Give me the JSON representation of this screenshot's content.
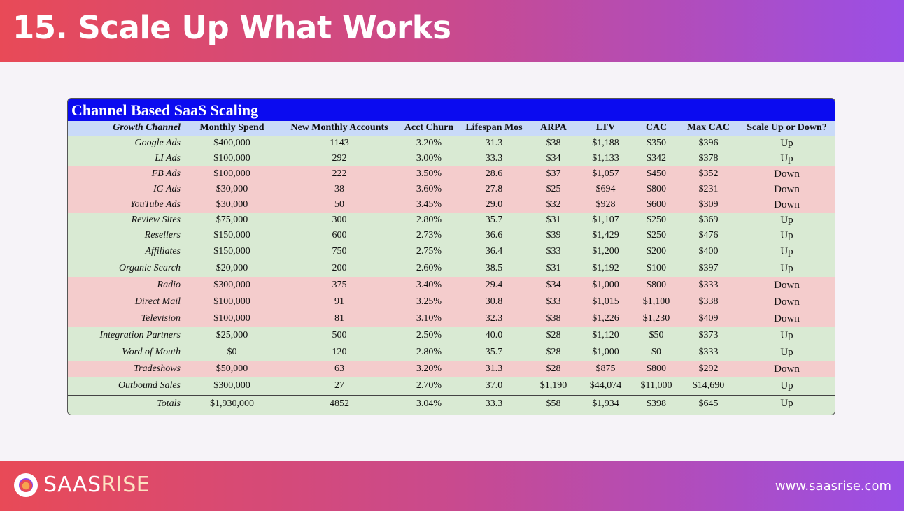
{
  "header": {
    "title": "15. Scale Up What Works"
  },
  "table": {
    "title": "Channel Based SaaS Scaling",
    "columns": [
      "Growth Channel",
      "Monthly Spend",
      "New Monthly Accounts",
      "Acct Churn",
      "Lifespan Mos",
      "ARPA",
      "LTV",
      "CAC",
      "Max CAC",
      "Scale Up or Down?"
    ],
    "rows": [
      {
        "status": "up",
        "cells": [
          "Google Ads",
          "$400,000",
          "1143",
          "3.20%",
          "31.3",
          "$38",
          "$1,188",
          "$350",
          "$396",
          "Up"
        ]
      },
      {
        "status": "up",
        "cells": [
          "LI Ads",
          "$100,000",
          "292",
          "3.00%",
          "33.3",
          "$34",
          "$1,133",
          "$342",
          "$378",
          "Up"
        ]
      },
      {
        "status": "down",
        "cells": [
          "FB Ads",
          "$100,000",
          "222",
          "3.50%",
          "28.6",
          "$37",
          "$1,057",
          "$450",
          "$352",
          "Down"
        ]
      },
      {
        "status": "down",
        "cells": [
          "IG Ads",
          "$30,000",
          "38",
          "3.60%",
          "27.8",
          "$25",
          "$694",
          "$800",
          "$231",
          "Down"
        ]
      },
      {
        "status": "down",
        "cells": [
          "YouTube Ads",
          "$30,000",
          "50",
          "3.45%",
          "29.0",
          "$32",
          "$928",
          "$600",
          "$309",
          "Down"
        ]
      },
      {
        "status": "up",
        "cells": [
          "Review Sites",
          "$75,000",
          "300",
          "2.80%",
          "35.7",
          "$31",
          "$1,107",
          "$250",
          "$369",
          "Up"
        ]
      },
      {
        "status": "up",
        "cells": [
          "Resellers",
          "$150,000",
          "600",
          "2.73%",
          "36.6",
          "$39",
          "$1,429",
          "$250",
          "$476",
          "Up"
        ]
      },
      {
        "status": "up",
        "cells": [
          "Affiliates",
          "$150,000",
          "750",
          "2.75%",
          "36.4",
          "$33",
          "$1,200",
          "$200",
          "$400",
          "Up"
        ]
      },
      {
        "status": "up",
        "cells": [
          "Organic Search",
          "$20,000",
          "200",
          "2.60%",
          "38.5",
          "$31",
          "$1,192",
          "$100",
          "$397",
          "Up"
        ]
      },
      {
        "status": "down",
        "cells": [
          "Radio",
          "$300,000",
          "375",
          "3.40%",
          "29.4",
          "$34",
          "$1,000",
          "$800",
          "$333",
          "Down"
        ]
      },
      {
        "status": "down",
        "cells": [
          "Direct Mail",
          "$100,000",
          "91",
          "3.25%",
          "30.8",
          "$33",
          "$1,015",
          "$1,100",
          "$338",
          "Down"
        ]
      },
      {
        "status": "down",
        "cells": [
          "Television",
          "$100,000",
          "81",
          "3.10%",
          "32.3",
          "$38",
          "$1,226",
          "$1,230",
          "$409",
          "Down"
        ]
      },
      {
        "status": "up",
        "cells": [
          "Integration Partners",
          "$25,000",
          "500",
          "2.50%",
          "40.0",
          "$28",
          "$1,120",
          "$50",
          "$373",
          "Up"
        ]
      },
      {
        "status": "up",
        "cells": [
          "Word of Mouth",
          "$0",
          "120",
          "2.80%",
          "35.7",
          "$28",
          "$1,000",
          "$0",
          "$333",
          "Up"
        ]
      },
      {
        "status": "down",
        "cells": [
          "Tradeshows",
          "$50,000",
          "63",
          "3.20%",
          "31.3",
          "$28",
          "$875",
          "$800",
          "$292",
          "Down"
        ]
      },
      {
        "status": "up",
        "cells": [
          "Outbound Sales",
          "$300,000",
          "27",
          "2.70%",
          "37.0",
          "$1,190",
          "$44,074",
          "$11,000",
          "$14,690",
          "Up"
        ]
      }
    ],
    "totals": [
      "Totals",
      "$1,930,000",
      "4852",
      "3.04%",
      "33.3",
      "$58",
      "$1,934",
      "$398",
      "$645",
      "Up"
    ]
  },
  "footer": {
    "logo_part1": "SAAS",
    "logo_part2": "RISE",
    "url": "www.saasrise.com"
  },
  "colors": {
    "up_row": "#d9ead3",
    "down_row": "#f4cccc",
    "table_title_bg": "#0b0bf0",
    "column_header_bg": "#c9daf8",
    "brand_gradient_start": "#e84a57",
    "brand_gradient_end": "#9a4fe6"
  }
}
